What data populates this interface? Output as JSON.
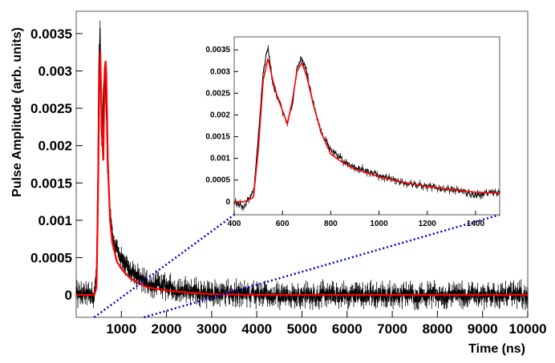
{
  "chart_data": [
    {
      "type": "line",
      "panel": "main",
      "title": "",
      "xlabel": "Time (ns)",
      "ylabel": "Pulse Amplitude (arb. units)",
      "xlim": [
        0,
        10000
      ],
      "ylim": [
        -0.0003,
        0.0038
      ],
      "x_ticks": [
        1000,
        2000,
        3000,
        4000,
        5000,
        6000,
        7000,
        8000,
        9000,
        10000
      ],
      "x_tick_labels": [
        "1000",
        "2000",
        "3000",
        "4000",
        "5000",
        "6000",
        "7000",
        "8000",
        "9000",
        "10000"
      ],
      "y_ticks": [
        0,
        0.0005,
        0.001,
        0.0015,
        0.002,
        0.0025,
        0.003,
        0.0035
      ],
      "y_tick_labels": [
        "0",
        "0.0005",
        "0.001",
        "0.0015",
        "0.002",
        "0.0025",
        "0.003",
        "0.0035"
      ],
      "grid": false,
      "series": [
        {
          "role": "data-with-error-bars",
          "color": "#000000",
          "x": [
            0,
            300,
            400,
            450,
            480,
            500,
            530,
            560,
            600,
            630,
            660,
            700,
            750,
            800,
            900,
            1000,
            1200,
            1400,
            1600,
            2000,
            2500,
            3000,
            4000,
            5000,
            6000,
            7000,
            8000,
            9000,
            10000
          ],
          "y": [
            0,
            0,
            0,
            0.0003,
            0.0015,
            0.003,
            0.0036,
            0.002,
            0.0026,
            0.0032,
            0.0026,
            0.0016,
            0.0011,
            0.0008,
            0.0006,
            0.0005,
            0.0003,
            0.0002,
            0.00015,
            0.0001,
            5e-05,
            2e-05,
            0,
            0,
            0,
            0,
            0,
            0,
            0
          ],
          "noise_amplitude": 0.0001
        },
        {
          "role": "fit",
          "color": "#ff0000",
          "x": [
            0,
            300,
            400,
            450,
            480,
            510,
            535,
            560,
            600,
            630,
            660,
            700,
            750,
            800,
            900,
            1000,
            1200,
            1400,
            1600,
            2000,
            2500,
            3000,
            4000,
            5000,
            6000,
            7000,
            8000,
            9000,
            10000
          ],
          "y": [
            0,
            0,
            0,
            0.0001,
            0.0012,
            0.0028,
            0.0033,
            0.0024,
            0.0018,
            0.003,
            0.0032,
            0.0018,
            0.001,
            0.0007,
            0.00045,
            0.00035,
            0.00022,
            0.00015,
            0.0001,
            6e-05,
            3e-05,
            1e-05,
            0,
            0,
            0,
            0,
            0,
            0,
            0
          ]
        }
      ]
    },
    {
      "type": "line",
      "panel": "inset",
      "title": "",
      "xlabel": "",
      "ylabel": "",
      "xlim": [
        400,
        1500
      ],
      "ylim": [
        -0.0003,
        0.0038
      ],
      "x_ticks": [
        400,
        600,
        800,
        1000,
        1200,
        1400
      ],
      "x_tick_labels": [
        "400",
        "600",
        "800",
        "1000",
        "1200",
        "1400"
      ],
      "y_ticks": [
        0,
        0.0005,
        0.001,
        0.0015,
        0.002,
        0.0025,
        0.003,
        0.0035
      ],
      "y_tick_labels": [
        "0",
        "0.0005",
        "0.001",
        "0.0015",
        "0.002",
        "0.0025",
        "0.003",
        "0.0035"
      ],
      "grid": false,
      "series": [
        {
          "role": "data-with-error-bars",
          "color": "#000000",
          "x": [
            400,
            440,
            480,
            500,
            520,
            540,
            560,
            580,
            600,
            620,
            640,
            660,
            680,
            700,
            730,
            760,
            800,
            850,
            900,
            1000,
            1100,
            1200,
            1300,
            1400,
            1450,
            1500
          ],
          "y": [
            0,
            -0.0001,
            0.0002,
            0.0015,
            0.003,
            0.0036,
            0.0027,
            0.0024,
            0.0021,
            0.0018,
            0.0022,
            0.0031,
            0.0033,
            0.003,
            0.0022,
            0.0016,
            0.0012,
            0.00095,
            0.0008,
            0.0006,
            0.00045,
            0.00035,
            0.00028,
            0.00015,
            0.0002,
            0.0002
          ],
          "noise_amplitude": 6e-05
        },
        {
          "role": "fit",
          "color": "#ff0000",
          "x": [
            400,
            440,
            480,
            500,
            520,
            540,
            560,
            580,
            600,
            620,
            640,
            660,
            680,
            700,
            730,
            760,
            800,
            850,
            900,
            1000,
            1100,
            1200,
            1300,
            1400,
            1500
          ],
          "y": [
            0,
            0,
            0.0001,
            0.0012,
            0.0028,
            0.0033,
            0.0028,
            0.0024,
            0.0021,
            0.0018,
            0.0023,
            0.003,
            0.0032,
            0.0029,
            0.0022,
            0.0016,
            0.0011,
            0.0009,
            0.00075,
            0.00058,
            0.00045,
            0.00035,
            0.00028,
            0.00022,
            0.0002
          ]
        }
      ]
    }
  ],
  "zoom_indicator": {
    "color": "#0000cc",
    "style": "dotted"
  }
}
